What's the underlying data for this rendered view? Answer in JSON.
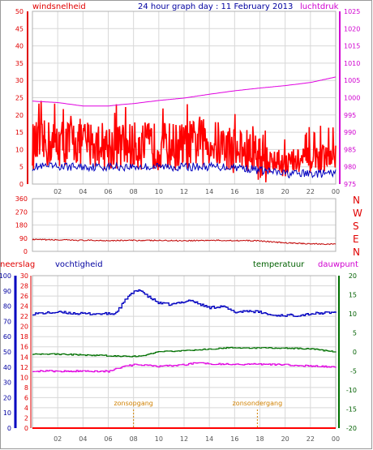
{
  "header": {
    "left_label": "windsnelheid",
    "title": "24 hour graph day : 11 February 2013",
    "right_label": "luchtdruk"
  },
  "wind_directions": [
    "N",
    "W",
    "S",
    "E",
    "N"
  ],
  "lower_labels": {
    "neerslag": "neerslag",
    "vochtigheid": "vochtigheid",
    "temperatuur": "temperatuur",
    "dauwpunt": "dauwpunt"
  },
  "events": {
    "sunrise_label": "zonsopgang",
    "sunset_label": "zonsondergang",
    "sunrise_hour": 8.0,
    "sunset_hour": 17.8
  },
  "colors": {
    "wind": "#ff0000",
    "gust_avg": "#0000c0",
    "pressure": "#e000e0",
    "direction": "#c00000",
    "humidity": "#0000c0",
    "temperature": "#007000",
    "dewpoint": "#e000e0",
    "rain": "#ff0000",
    "grid": "#d8d8d8",
    "events": "#d08000"
  },
  "chart_data": [
    {
      "type": "line",
      "x_ticks": [
        "02",
        "04",
        "06",
        "08",
        "10",
        "12",
        "14",
        "16",
        "18",
        "20",
        "22",
        "00"
      ],
      "y_left_ticks": [
        "0",
        "5",
        "10",
        "15",
        "20",
        "25",
        "30",
        "35",
        "40",
        "45",
        "50"
      ],
      "y_right_ticks": [
        "975",
        "980",
        "985",
        "990",
        "995",
        "1000",
        "1005",
        "1010",
        "1015",
        "1020",
        "1025"
      ],
      "ylim_left": [
        0,
        50
      ],
      "ylim_right": [
        975,
        1025
      ],
      "series": [
        {
          "name": "windsnelheid",
          "axis": "left",
          "x": [
            0,
            2,
            4,
            6,
            8,
            10,
            12,
            13,
            14,
            16,
            18,
            19,
            20,
            22,
            24
          ],
          "y": [
            11,
            12,
            12,
            11,
            11,
            11,
            11,
            12,
            12,
            10,
            8,
            6,
            6,
            7,
            8
          ]
        },
        {
          "axis": "left",
          "x": [
            0,
            2,
            4,
            6,
            8,
            10,
            12,
            14,
            16,
            18,
            20,
            22,
            24
          ],
          "y": [
            5,
            5,
            5,
            5,
            5,
            5,
            5,
            5,
            5,
            4,
            3,
            3,
            3
          ]
        },
        {
          "name": "luchtdruk",
          "axis": "right",
          "x": [
            0,
            2,
            4,
            6,
            7,
            8,
            10,
            12,
            14,
            16,
            18,
            20,
            22,
            24
          ],
          "y": [
            999,
            998.6,
            997.6,
            997.6,
            998,
            998.3,
            999.2,
            999.9,
            1001,
            1002,
            1002.8,
            1003.5,
            1004.4,
            1006
          ]
        }
      ]
    },
    {
      "type": "line",
      "x_ticks": [
        "02",
        "04",
        "06",
        "08",
        "10",
        "12",
        "14",
        "16",
        "18",
        "20",
        "22",
        "00"
      ],
      "y_ticks": [
        "0",
        "90",
        "180",
        "270",
        "360"
      ],
      "ylim": [
        0,
        360
      ],
      "series": [
        {
          "x": [
            0,
            2,
            4,
            6,
            8,
            10,
            12,
            14,
            16,
            18,
            19,
            20,
            21,
            22,
            23,
            24
          ],
          "y": [
            80,
            78,
            75,
            74,
            75,
            74,
            73,
            75,
            74,
            72,
            64,
            58,
            55,
            52,
            50,
            49
          ]
        }
      ]
    },
    {
      "type": "line",
      "x_ticks": [
        "02",
        "04",
        "06",
        "08",
        "10",
        "12",
        "14",
        "16",
        "18",
        "20",
        "22",
        "00"
      ],
      "y_neerslag_ticks": [
        "0",
        "2",
        "4",
        "6",
        "8",
        "10",
        "12",
        "14",
        "16",
        "18",
        "20",
        "22",
        "24",
        "26",
        "28",
        "30"
      ],
      "y_vochtigheid_ticks": [
        "0",
        "10",
        "20",
        "30",
        "40",
        "50",
        "60",
        "70",
        "80",
        "90",
        "100"
      ],
      "y_temperatuur_ticks": [
        "-20",
        "-15",
        "-10",
        "-5",
        "0",
        "5",
        "10",
        "15",
        "20"
      ],
      "ylim_neerslag": [
        0,
        30
      ],
      "ylim_vochtigheid": [
        0,
        100
      ],
      "ylim_temperatuur": [
        -20,
        20
      ],
      "series": [
        {
          "name": "vochtigheid",
          "axis": "vochtigheid",
          "x": [
            0,
            2,
            4,
            6,
            6.5,
            7,
            7.5,
            8,
            8.5,
            9,
            10,
            11,
            12,
            12.5,
            13,
            14,
            15,
            16,
            17,
            18,
            19,
            20,
            21,
            22,
            24
          ],
          "y": [
            75,
            76,
            75,
            75,
            75,
            80,
            86,
            89,
            91,
            87,
            82,
            81,
            83,
            84,
            82,
            79,
            80,
            76,
            77,
            76,
            74,
            74,
            74,
            75,
            76
          ]
        },
        {
          "name": "temperatuur",
          "axis": "temperatuur",
          "x": [
            0,
            2,
            4,
            6,
            7,
            8,
            9,
            10,
            12,
            14,
            15,
            16,
            18,
            20,
            22,
            23,
            24
          ],
          "y": [
            -0.5,
            -0.6,
            -0.8,
            -1.0,
            -1.1,
            -1.2,
            -0.8,
            0.0,
            0.3,
            0.7,
            1.0,
            1.1,
            1.0,
            1.0,
            0.8,
            0.4,
            0.0
          ]
        },
        {
          "name": "dauwpunt",
          "axis": "temperatuur",
          "x": [
            0,
            2,
            4,
            6,
            7,
            8,
            9,
            10,
            12,
            13,
            14,
            16,
            18,
            20,
            22,
            24
          ],
          "y": [
            -5.0,
            -5.1,
            -5.0,
            -5.1,
            -4.0,
            -3.4,
            -3.5,
            -3.8,
            -3.4,
            -2.8,
            -3.1,
            -3.3,
            -3.2,
            -3.4,
            -3.7,
            -4.0
          ]
        },
        {
          "name": "neerslag",
          "axis": "neerslag",
          "x": [
            0,
            24
          ],
          "y": [
            0,
            0
          ]
        }
      ]
    }
  ]
}
